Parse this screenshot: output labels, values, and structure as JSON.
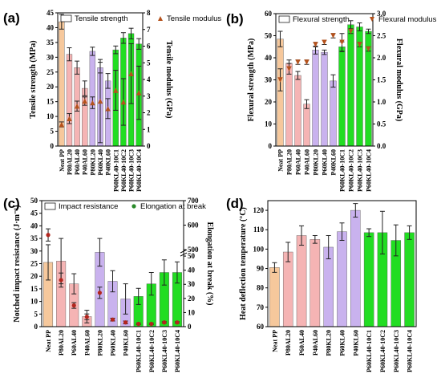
{
  "colors": {
    "neat": "#f6c89c",
    "pp_al": "#f5b4b4",
    "pp_kl": "#c9b2ee",
    "kl_c": "#22dd22",
    "err": "#222222",
    "tri_fill": "#b5521c",
    "dot_fill": "#b3261e",
    "green_dot": "#2a8a2a"
  },
  "categories": [
    "Neat PP",
    "P80AL20",
    "P60AL40",
    "P40AL60",
    "P80KL20",
    "P60KL40",
    "P40KL60",
    "P60KL40-10C1",
    "P60KL40-10C2",
    "P60KL40-10C3",
    "P60KL40-10C4"
  ],
  "chart_data": [
    {
      "id": "a",
      "panel_label": "(a)",
      "type": "bar",
      "ylabel": "Tensile strength (MPa)",
      "y2label": "Tensile modulus (GPa)",
      "ylim": [
        0,
        45
      ],
      "y2lim": [
        0,
        8
      ],
      "yticks": [
        0,
        5,
        10,
        15,
        20,
        25,
        30,
        35,
        40,
        45
      ],
      "y2ticks": [
        0,
        1,
        2,
        3,
        4,
        5,
        6,
        7,
        8
      ],
      "series": [
        {
          "name": "Tensile strength",
          "kind": "bar",
          "values": [
            42,
            31,
            26.5,
            19.5,
            32,
            26.5,
            22,
            32.5,
            36.5,
            38,
            34.5
          ],
          "errors": [
            2.5,
            2.2,
            2.2,
            2.5,
            1.4,
            1.8,
            2.5,
            1.3,
            1.8,
            1.8,
            1.8
          ]
        },
        {
          "name": "Tensile modulus",
          "kind": "triangle",
          "axis": "right",
          "values": [
            1.3,
            1.65,
            2.4,
            2.7,
            2.6,
            2.7,
            2.25,
            3.35,
            2.65,
            4.35,
            3.2
          ],
          "errors": [
            0.15,
            0.3,
            0.3,
            0.25,
            0.35,
            2.5,
            0.6,
            1.2,
            1.4,
            1.8,
            1.6
          ]
        }
      ]
    },
    {
      "id": "b",
      "panel_label": "(b)",
      "type": "bar",
      "ylabel": "Flexural strength (MPa)",
      "y2label": "Flexural modulus (GPa)",
      "ylim": [
        0,
        60
      ],
      "y2lim": [
        0,
        3.0
      ],
      "yticks": [
        0,
        10,
        20,
        30,
        40,
        50,
        60
      ],
      "y2ticks": [
        0,
        0.5,
        1.0,
        1.5,
        2.0,
        2.5,
        3.0
      ],
      "series": [
        {
          "name": "Flexural strength",
          "kind": "bar",
          "values": [
            48.5,
            37.5,
            32,
            19,
            43.5,
            42.5,
            29.5,
            45,
            55,
            54,
            52
          ],
          "errors": [
            3.5,
            1.5,
            1.8,
            2.0,
            1.8,
            1.0,
            2.8,
            2.2,
            1.8,
            1.8,
            1.0
          ]
        },
        {
          "name": "Flexural modulus",
          "kind": "triangle",
          "axis": "right",
          "values": [
            1.5,
            1.75,
            1.9,
            1.9,
            2.3,
            2.35,
            2.5,
            2.35,
            2.6,
            2.3,
            2.2
          ],
          "errors": [
            0.25,
            0.12,
            0.05,
            0.05,
            0.05,
            0.05,
            0.05,
            0.2,
            0.05,
            0.05,
            0.05
          ]
        }
      ]
    },
    {
      "id": "c",
      "panel_label": "(c)",
      "type": "bar",
      "ylabel": "Notched impact resistance (J·m⁻¹)",
      "y2label": "Elongation at break (%)",
      "ylim": [
        0,
        50
      ],
      "yticks": [
        0,
        5,
        10,
        15,
        20,
        25,
        30,
        35,
        40,
        45,
        50
      ],
      "y2ticks_low": [
        0,
        10,
        20,
        30,
        40,
        50
      ],
      "y2ticks_high": [
        500,
        600,
        700
      ],
      "series": [
        {
          "name": "Impact resistance",
          "kind": "bar",
          "values": [
            25.5,
            26,
            17,
            4,
            29.5,
            18,
            11,
            12,
            17,
            21.5,
            21.5
          ],
          "errors": [
            7,
            9,
            4,
            2.5,
            5.5,
            4.2,
            6,
            3.2,
            4.5,
            5,
            4.2
          ]
        },
        {
          "name": "Elongation at break",
          "kind": "dot",
          "axis": "right",
          "values": [
            560,
            33,
            15,
            7,
            24,
            5,
            3,
            2,
            2,
            3,
            3
          ],
          "errors": [
            25,
            5,
            2,
            2,
            4,
            1,
            1,
            0.5,
            0.5,
            0.5,
            0.5
          ]
        }
      ]
    },
    {
      "id": "d",
      "panel_label": "(d)",
      "type": "bar",
      "ylabel": "Heat deflection temperature (°C)",
      "ylim": [
        60,
        125
      ],
      "yticks": [
        60,
        70,
        80,
        90,
        100,
        110,
        120
      ],
      "series": [
        {
          "name": "Heat deflection temperature",
          "kind": "bar",
          "values": [
            90.5,
            98.5,
            107,
            105,
            101,
            109,
            120,
            108.5,
            108.5,
            104.5,
            108.5
          ],
          "errors": [
            2.5,
            5,
            5,
            2,
            6,
            4.5,
            3.5,
            2,
            11,
            8,
            3.5
          ]
        }
      ]
    }
  ]
}
